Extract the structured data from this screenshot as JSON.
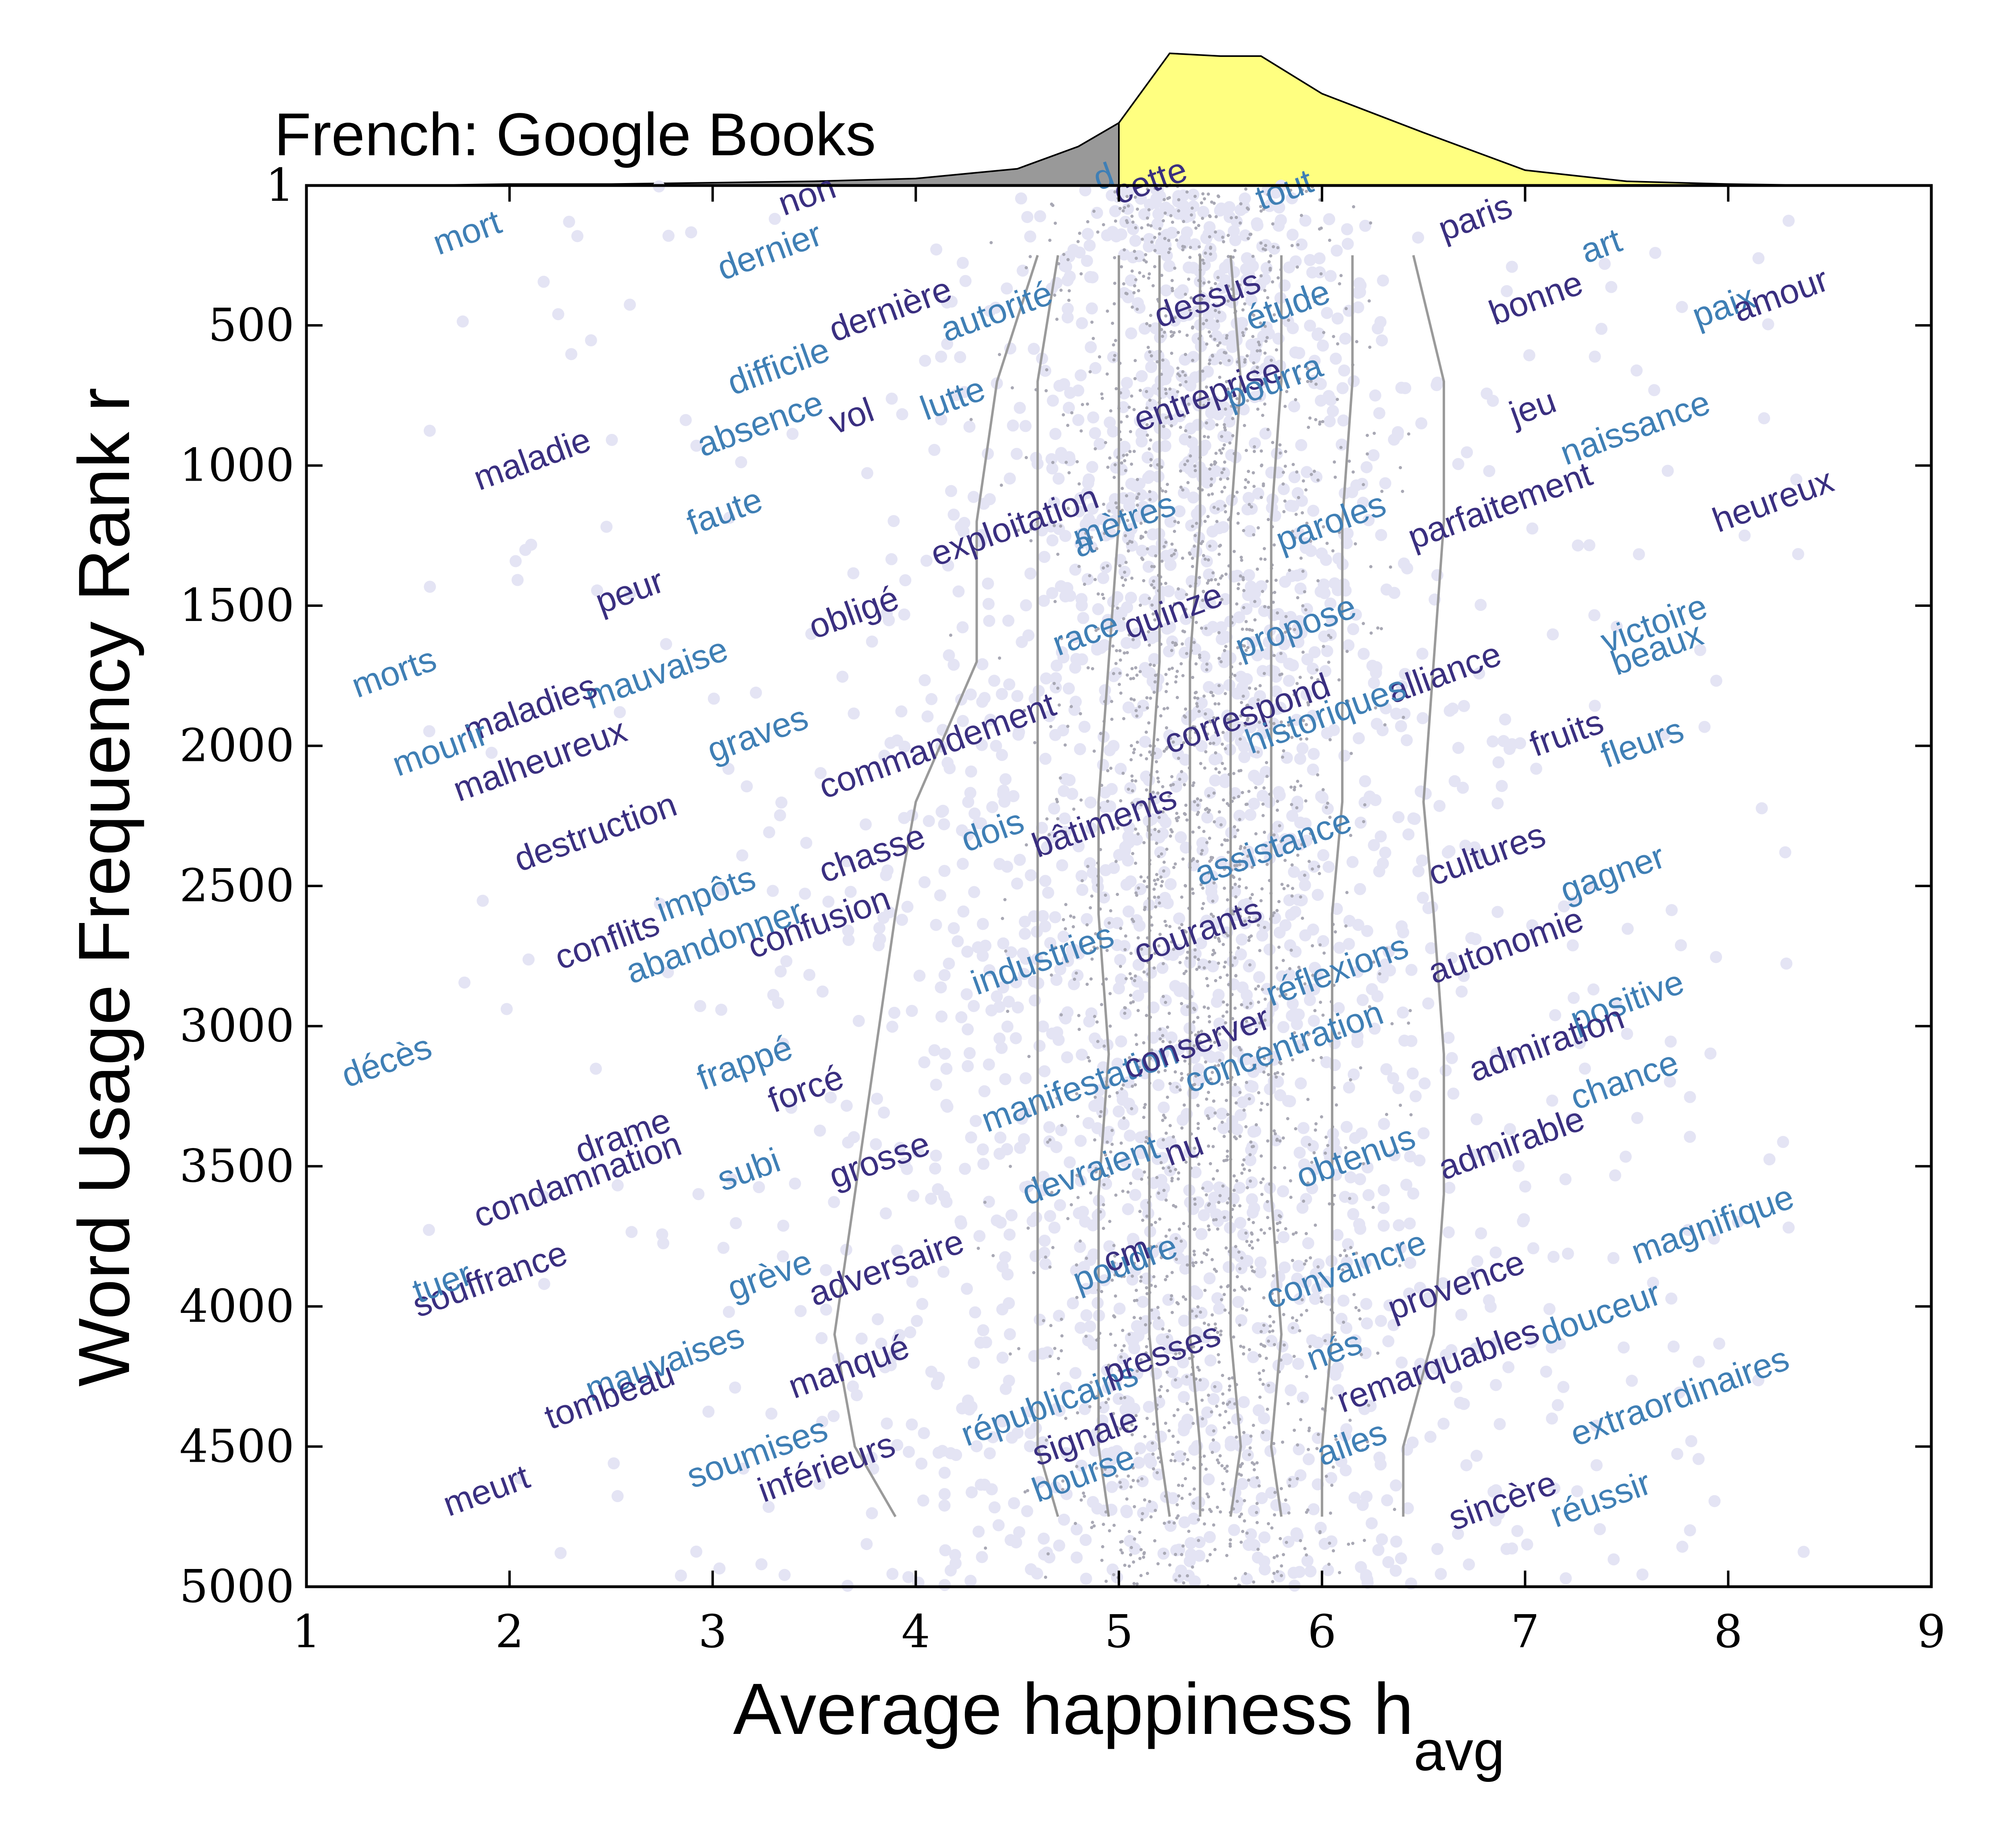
{
  "chart_data": {
    "type": "scatter",
    "title": "French: Google Books",
    "xlabel": "Average happiness h",
    "xlabel_subscript": "avg",
    "ylabel": "Word Usage Frequency Rank r",
    "xlim": [
      1,
      9
    ],
    "ylim": [
      5000,
      1
    ],
    "x_ticks": [
      1,
      2,
      3,
      4,
      5,
      6,
      7,
      8,
      9
    ],
    "y_ticks": [
      1,
      500,
      1000,
      1500,
      2000,
      2500,
      3000,
      3500,
      4000,
      4500,
      5000
    ],
    "y_tick_labels": [
      "1",
      "500",
      "1000",
      "1500",
      "2000",
      "2500",
      "3000",
      "3500",
      "4000",
      "4500",
      "5000"
    ],
    "distribution": {
      "x": [
        1.5,
        2,
        2.5,
        3,
        3.5,
        4,
        4.5,
        4.8,
        5,
        5.25,
        5.5,
        5.7,
        6,
        6.5,
        7,
        7.5,
        8,
        8.5
      ],
      "density": [
        0,
        0.01,
        0.01,
        0.02,
        0.03,
        0.05,
        0.12,
        0.28,
        0.45,
        0.95,
        0.93,
        0.93,
        0.66,
        0.38,
        0.11,
        0.03,
        0.01,
        0
      ]
    },
    "colors": {
      "word_dark": "#3a2f80",
      "word_light": "#3f7fb5",
      "histogram_below": "#999999",
      "histogram_above": "#ffff80",
      "points": "#e4e4f4",
      "deciles": "#9a9a9a"
    },
    "decile_lines": [
      {
        "x": [
          4.6,
          4.4,
          4.3,
          4.3,
          4.0,
          3.9,
          3.8,
          3.7,
          3.6,
          3.7,
          3.9
        ],
        "r": [
          250,
          700,
          1200,
          1700,
          2200,
          2600,
          3100,
          3600,
          4100,
          4500,
          4750
        ]
      },
      {
        "x": [
          4.7,
          4.6,
          4.6,
          4.6,
          4.6,
          4.6,
          4.6,
          4.6,
          4.6,
          4.6,
          4.7
        ],
        "r": [
          250,
          700,
          1200,
          1700,
          2200,
          2600,
          3100,
          3600,
          4100,
          4500,
          4750
        ]
      },
      {
        "x": [
          5.0,
          5.0,
          5.0,
          4.95,
          4.9,
          4.9,
          4.95,
          4.9,
          4.9,
          4.9,
          4.95
        ],
        "r": [
          250,
          700,
          1200,
          1700,
          2200,
          2600,
          3100,
          3600,
          4100,
          4500,
          4750
        ]
      },
      {
        "x": [
          5.2,
          5.2,
          5.2,
          5.2,
          5.15,
          5.15,
          5.15,
          5.15,
          5.15,
          5.2,
          5.25
        ],
        "r": [
          250,
          700,
          1200,
          1700,
          2200,
          2600,
          3100,
          3600,
          4100,
          4500,
          4750
        ]
      },
      {
        "x": [
          5.4,
          5.4,
          5.4,
          5.35,
          5.35,
          5.35,
          5.35,
          5.35,
          5.35,
          5.4,
          5.4
        ],
        "r": [
          250,
          700,
          1200,
          1700,
          2200,
          2600,
          3100,
          3600,
          4100,
          4500,
          4750
        ]
      },
      {
        "x": [
          5.55,
          5.6,
          5.55,
          5.55,
          5.55,
          5.55,
          5.55,
          5.55,
          5.55,
          5.6,
          5.55
        ],
        "r": [
          250,
          700,
          1200,
          1700,
          2200,
          2600,
          3100,
          3600,
          4100,
          4500,
          4750
        ]
      },
      {
        "x": [
          5.8,
          5.8,
          5.75,
          5.75,
          5.75,
          5.75,
          5.75,
          5.75,
          5.8,
          5.75,
          5.8
        ],
        "r": [
          250,
          700,
          1200,
          1700,
          2200,
          2600,
          3100,
          3600,
          4100,
          4500,
          4750
        ]
      },
      {
        "x": [
          6.15,
          6.15,
          6.1,
          6.1,
          6.1,
          6.05,
          6.05,
          6.05,
          6.05,
          6.0,
          6.0
        ],
        "r": [
          250,
          700,
          1200,
          1700,
          2200,
          2600,
          3100,
          3600,
          4100,
          4500,
          4750
        ]
      },
      {
        "x": [
          6.45,
          6.6,
          6.6,
          6.55,
          6.5,
          6.55,
          6.6,
          6.6,
          6.55,
          6.4,
          6.4
        ],
        "r": [
          250,
          700,
          1200,
          1700,
          2200,
          2600,
          3100,
          3600,
          4100,
          4500,
          4750
        ]
      }
    ],
    "words": [
      {
        "text": "mort",
        "x": 1.65,
        "r": 250,
        "color": "light"
      },
      {
        "text": "non",
        "x": 3.35,
        "r": 110,
        "color": "dark"
      },
      {
        "text": "dernier",
        "x": 3.05,
        "r": 340,
        "color": "light"
      },
      {
        "text": "d",
        "x": 4.9,
        "r": 20,
        "color": "light"
      },
      {
        "text": "cette",
        "x": 5.0,
        "r": 70,
        "color": "dark"
      },
      {
        "text": "tout",
        "x": 5.7,
        "r": 90,
        "color": "light"
      },
      {
        "text": "paris",
        "x": 6.6,
        "r": 200,
        "color": "dark"
      },
      {
        "text": "art",
        "x": 7.3,
        "r": 280,
        "color": "light"
      },
      {
        "text": "bonne",
        "x": 6.85,
        "r": 500,
        "color": "dark"
      },
      {
        "text": "paix",
        "x": 7.85,
        "r": 510,
        "color": "light"
      },
      {
        "text": "amour",
        "x": 8.05,
        "r": 490,
        "color": "dark"
      },
      {
        "text": "dernière",
        "x": 3.6,
        "r": 560,
        "color": "dark"
      },
      {
        "text": "autorité",
        "x": 4.15,
        "r": 560,
        "color": "light"
      },
      {
        "text": "dessus",
        "x": 5.2,
        "r": 510,
        "color": "dark"
      },
      {
        "text": "étude",
        "x": 5.65,
        "r": 520,
        "color": "light"
      },
      {
        "text": "difficile",
        "x": 3.1,
        "r": 750,
        "color": "light"
      },
      {
        "text": "entreprise",
        "x": 5.1,
        "r": 880,
        "color": "dark"
      },
      {
        "text": "pourra",
        "x": 5.55,
        "r": 800,
        "color": "light"
      },
      {
        "text": "absence",
        "x": 2.95,
        "r": 970,
        "color": "light"
      },
      {
        "text": "vol",
        "x": 3.6,
        "r": 890,
        "color": "dark"
      },
      {
        "text": "lutte",
        "x": 4.05,
        "r": 840,
        "color": "light"
      },
      {
        "text": "jeu",
        "x": 6.95,
        "r": 860,
        "color": "dark"
      },
      {
        "text": "naissance",
        "x": 7.2,
        "r": 1000,
        "color": "light"
      },
      {
        "text": "maladie",
        "x": 1.85,
        "r": 1090,
        "color": "dark"
      },
      {
        "text": "faute",
        "x": 2.9,
        "r": 1250,
        "color": "light"
      },
      {
        "text": "exploitation",
        "x": 4.1,
        "r": 1360,
        "color": "dark"
      },
      {
        "text": "mètres",
        "x": 4.8,
        "r": 1300,
        "color": "light"
      },
      {
        "text": "a",
        "x": 4.8,
        "r": 1330,
        "color": "light"
      },
      {
        "text": "paroles",
        "x": 5.8,
        "r": 1310,
        "color": "light"
      },
      {
        "text": "parfaitement",
        "x": 6.45,
        "r": 1300,
        "color": "dark"
      },
      {
        "text": "heureux",
        "x": 7.95,
        "r": 1240,
        "color": "dark"
      },
      {
        "text": "peur",
        "x": 2.45,
        "r": 1530,
        "color": "dark"
      },
      {
        "text": "obligé",
        "x": 3.5,
        "r": 1620,
        "color": "dark"
      },
      {
        "text": "race",
        "x": 4.7,
        "r": 1680,
        "color": "light"
      },
      {
        "text": "quinze",
        "x": 5.05,
        "r": 1620,
        "color": "dark"
      },
      {
        "text": "propose",
        "x": 5.6,
        "r": 1690,
        "color": "light"
      },
      {
        "text": "victoire",
        "x": 7.4,
        "r": 1670,
        "color": "light"
      },
      {
        "text": "beaux",
        "x": 7.45,
        "r": 1750,
        "color": "light"
      },
      {
        "text": "morts",
        "x": 1.25,
        "r": 1830,
        "color": "light"
      },
      {
        "text": "mauvaise",
        "x": 2.4,
        "r": 1870,
        "color": "light"
      },
      {
        "text": "maladies",
        "x": 1.8,
        "r": 1990,
        "color": "dark"
      },
      {
        "text": "alliance",
        "x": 6.35,
        "r": 1850,
        "color": "dark"
      },
      {
        "text": "correspond",
        "x": 5.25,
        "r": 2030,
        "color": "dark"
      },
      {
        "text": "historiques",
        "x": 5.65,
        "r": 2030,
        "color": "light"
      },
      {
        "text": "mourir",
        "x": 1.45,
        "r": 2110,
        "color": "light"
      },
      {
        "text": "malheureux",
        "x": 1.75,
        "r": 2200,
        "color": "dark"
      },
      {
        "text": "graves",
        "x": 3.0,
        "r": 2060,
        "color": "light"
      },
      {
        "text": "commandement",
        "x": 3.55,
        "r": 2190,
        "color": "dark"
      },
      {
        "text": "fruits",
        "x": 7.05,
        "r": 2040,
        "color": "dark"
      },
      {
        "text": "fleurs",
        "x": 7.4,
        "r": 2080,
        "color": "light"
      },
      {
        "text": "destruction",
        "x": 2.05,
        "r": 2450,
        "color": "dark"
      },
      {
        "text": "chasse",
        "x": 3.55,
        "r": 2490,
        "color": "dark"
      },
      {
        "text": "dois",
        "x": 4.25,
        "r": 2380,
        "color": "light"
      },
      {
        "text": "bâtiments",
        "x": 4.6,
        "r": 2400,
        "color": "dark"
      },
      {
        "text": "assistance",
        "x": 5.4,
        "r": 2500,
        "color": "light"
      },
      {
        "text": "cultures",
        "x": 6.55,
        "r": 2500,
        "color": "dark"
      },
      {
        "text": "gagner",
        "x": 7.2,
        "r": 2560,
        "color": "light"
      },
      {
        "text": "conflits",
        "x": 2.25,
        "r": 2800,
        "color": "dark"
      },
      {
        "text": "impôts",
        "x": 2.75,
        "r": 2630,
        "color": "light"
      },
      {
        "text": "abandonner",
        "x": 2.6,
        "r": 2850,
        "color": "light"
      },
      {
        "text": "confusion",
        "x": 3.2,
        "r": 2760,
        "color": "dark"
      },
      {
        "text": "industries",
        "x": 4.3,
        "r": 2890,
        "color": "light"
      },
      {
        "text": "courants",
        "x": 5.1,
        "r": 2780,
        "color": "dark"
      },
      {
        "text": "autonomie",
        "x": 6.55,
        "r": 2850,
        "color": "dark"
      },
      {
        "text": "réflexions",
        "x": 5.75,
        "r": 2930,
        "color": "light"
      },
      {
        "text": "positive",
        "x": 7.25,
        "r": 3020,
        "color": "light"
      },
      {
        "text": "décès",
        "x": 1.2,
        "r": 3220,
        "color": "light"
      },
      {
        "text": "frappé",
        "x": 2.95,
        "r": 3230,
        "color": "light"
      },
      {
        "text": "forcé",
        "x": 3.3,
        "r": 3310,
        "color": "dark"
      },
      {
        "text": "manifestation",
        "x": 4.35,
        "r": 3380,
        "color": "light"
      },
      {
        "text": "conserver",
        "x": 5.05,
        "r": 3190,
        "color": "dark"
      },
      {
        "text": "concentration",
        "x": 5.35,
        "r": 3240,
        "color": "light"
      },
      {
        "text": "admiration",
        "x": 6.75,
        "r": 3200,
        "color": "dark"
      },
      {
        "text": "chance",
        "x": 7.25,
        "r": 3300,
        "color": "light"
      },
      {
        "text": "drame",
        "x": 2.35,
        "r": 3490,
        "color": "dark"
      },
      {
        "text": "condamnation",
        "x": 1.85,
        "r": 3720,
        "color": "dark"
      },
      {
        "text": "subi",
        "x": 3.05,
        "r": 3590,
        "color": "light"
      },
      {
        "text": "grosse",
        "x": 3.6,
        "r": 3580,
        "color": "dark"
      },
      {
        "text": "devraient",
        "x": 4.55,
        "r": 3640,
        "color": "light"
      },
      {
        "text": "nu",
        "x": 5.25,
        "r": 3500,
        "color": "dark"
      },
      {
        "text": "obtenus",
        "x": 5.9,
        "r": 3580,
        "color": "light"
      },
      {
        "text": "admirable",
        "x": 6.6,
        "r": 3550,
        "color": "dark"
      },
      {
        "text": "magnifique",
        "x": 7.55,
        "r": 3850,
        "color": "light"
      },
      {
        "text": "souffrance",
        "x": 1.55,
        "r": 4040,
        "color": "dark"
      },
      {
        "text": "tuer",
        "x": 1.55,
        "r": 3990,
        "color": "light"
      },
      {
        "text": "grève",
        "x": 3.1,
        "r": 3980,
        "color": "light"
      },
      {
        "text": "adversaire",
        "x": 3.5,
        "r": 4000,
        "color": "dark"
      },
      {
        "text": "poudre",
        "x": 4.8,
        "r": 3950,
        "color": "light"
      },
      {
        "text": "cm",
        "x": 4.95,
        "r": 3880,
        "color": "dark"
      },
      {
        "text": "convaincre",
        "x": 5.75,
        "r": 4010,
        "color": "light"
      },
      {
        "text": "provence",
        "x": 6.35,
        "r": 4050,
        "color": "dark"
      },
      {
        "text": "douceur",
        "x": 7.1,
        "r": 4140,
        "color": "light"
      },
      {
        "text": "mauvaises",
        "x": 2.4,
        "r": 4340,
        "color": "light"
      },
      {
        "text": "tombeau",
        "x": 2.2,
        "r": 4440,
        "color": "dark"
      },
      {
        "text": "manqué",
        "x": 3.4,
        "r": 4330,
        "color": "dark"
      },
      {
        "text": "républicains",
        "x": 4.25,
        "r": 4500,
        "color": "light"
      },
      {
        "text": "presses",
        "x": 4.95,
        "r": 4280,
        "color": "dark"
      },
      {
        "text": "nés",
        "x": 5.95,
        "r": 4230,
        "color": "light"
      },
      {
        "text": "remarquables",
        "x": 6.1,
        "r": 4380,
        "color": "dark"
      },
      {
        "text": "extraordinaires",
        "x": 7.25,
        "r": 4500,
        "color": "light"
      },
      {
        "text": "meurt",
        "x": 1.7,
        "r": 4750,
        "color": "dark"
      },
      {
        "text": "soumises",
        "x": 2.9,
        "r": 4650,
        "color": "light"
      },
      {
        "text": "inférieurs",
        "x": 3.25,
        "r": 4700,
        "color": "dark"
      },
      {
        "text": "signale",
        "x": 4.6,
        "r": 4570,
        "color": "dark"
      },
      {
        "text": "bourse",
        "x": 4.6,
        "r": 4700,
        "color": "light"
      },
      {
        "text": "ailes",
        "x": 6.0,
        "r": 4570,
        "color": "light"
      },
      {
        "text": "sincère",
        "x": 6.65,
        "r": 4800,
        "color": "dark"
      },
      {
        "text": "réussir",
        "x": 7.15,
        "r": 4790,
        "color": "light"
      }
    ]
  }
}
